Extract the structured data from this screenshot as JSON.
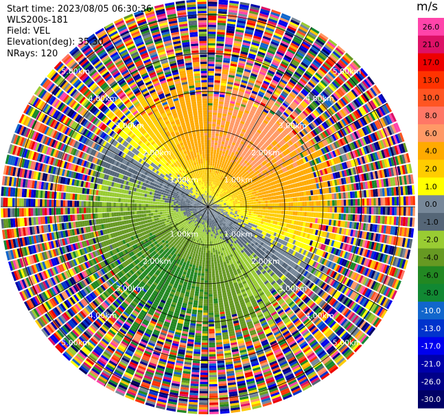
{
  "header": {
    "start_time": "Start time: 2023/08/05 06:30:36",
    "instrument": "WLS200s-181",
    "field": "Field: VEL",
    "elevation": "Elevation(deg): 35.30",
    "nrays": "NRays: 120"
  },
  "chart_data": {
    "type": "heatmap",
    "projection": "polar-ppi",
    "field": "VEL",
    "nrays": 120,
    "range_rings_km": [
      1.0,
      2.0,
      3.0,
      4.0,
      5.0
    ],
    "ring_labels": [
      "1.00km",
      "2.00km",
      "3.00km",
      "4.00km",
      "5.00km"
    ],
    "max_range_km": 5.4,
    "colorbar": {
      "unit": "m/s",
      "ticks": [
        "26.0",
        "21.0",
        "17.0",
        "13.0",
        "10.0",
        "8.0",
        "6.0",
        "4.0",
        "2.0",
        "1.0",
        "0.0",
        "-1.0",
        "-2.0",
        "-4.0",
        "-6.0",
        "-8.0",
        "-10.0",
        "-13.0",
        "-17.0",
        "-21.0",
        "-26.0",
        "-30.0"
      ],
      "colors": [
        "#ff44aa",
        "#dd1166",
        "#ee0000",
        "#ff3300",
        "#ff5522",
        "#ff7766",
        "#ff9966",
        "#ffaa00",
        "#ffcc00",
        "#ffff00",
        "#778899",
        "#556677",
        "#99cc33",
        "#669922",
        "#228822",
        "#118833",
        "#1166cc",
        "#0033cc",
        "#0000ee",
        "#0000aa",
        "#000088",
        "#000066"
      ]
    }
  }
}
